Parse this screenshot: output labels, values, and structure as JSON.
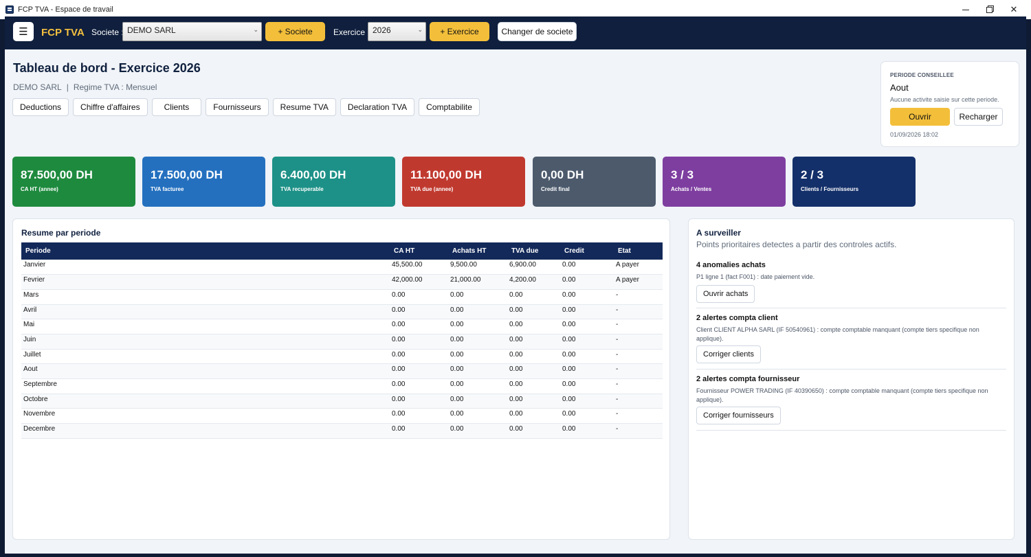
{
  "window": {
    "title": "FCP TVA - Espace de travail"
  },
  "navbar": {
    "menu_icon": "☰",
    "brand": "FCP TVA",
    "societe_label": "Societe :",
    "societe_value": "DEMO SARL",
    "add_societe": "+ Societe",
    "exercice_label": "Exercice :",
    "exercice_value": "2026",
    "add_exercice": "+ Exercice",
    "change_societe": "Changer de societe"
  },
  "header": {
    "title": "Tableau de bord - Exercice 2026",
    "company": "DEMO SARL",
    "separator": "|",
    "regime": "Regime TVA : Mensuel"
  },
  "tabs": [
    "Deductions",
    "Chiffre d'affaires",
    "Clients",
    "Fournisseurs",
    "Resume TVA",
    "Declaration TVA",
    "Comptabilite"
  ],
  "period_card": {
    "label": "PERIODE CONSEILLEE",
    "month": "Aout",
    "note": "Aucune activite saisie sur cette periode.",
    "open_btn": "Ouvrir",
    "reload_btn": "Recharger",
    "timestamp": "01/09/2026 18:02"
  },
  "kpis": [
    {
      "value": "87.500,00 DH",
      "caption": "CA HT (annee)",
      "color": "#1e8a3e"
    },
    {
      "value": "17.500,00 DH",
      "caption": "TVA facturee",
      "color": "#2470bf"
    },
    {
      "value": "6.400,00 DH",
      "caption": "TVA recuperable",
      "color": "#1d9187"
    },
    {
      "value": "11.100,00 DH",
      "caption": "TVA due (annee)",
      "color": "#c0392f"
    },
    {
      "value": "0,00 DH",
      "caption": "Credit final",
      "color": "#4c5a6c"
    },
    {
      "value": "3 / 3",
      "caption": "Achats / Ventes",
      "color": "#7e3ea0"
    },
    {
      "value": "2 / 3",
      "caption": "Clients / Fournisseurs",
      "color": "#14306a"
    }
  ],
  "summary": {
    "title": "Resume par periode",
    "columns": [
      "Periode",
      "CA HT",
      "Achats HT",
      "TVA due",
      "Credit",
      "Etat"
    ],
    "rows": [
      [
        "Janvier",
        "45,500.00",
        "9,500.00",
        "6,900.00",
        "0.00",
        "A payer"
      ],
      [
        "Fevrier",
        "42,000.00",
        "21,000.00",
        "4,200.00",
        "0.00",
        "A payer"
      ],
      [
        "Mars",
        "0.00",
        "0.00",
        "0.00",
        "0.00",
        "-"
      ],
      [
        "Avril",
        "0.00",
        "0.00",
        "0.00",
        "0.00",
        "-"
      ],
      [
        "Mai",
        "0.00",
        "0.00",
        "0.00",
        "0.00",
        "-"
      ],
      [
        "Juin",
        "0.00",
        "0.00",
        "0.00",
        "0.00",
        "-"
      ],
      [
        "Juillet",
        "0.00",
        "0.00",
        "0.00",
        "0.00",
        "-"
      ],
      [
        "Aout",
        "0.00",
        "0.00",
        "0.00",
        "0.00",
        "-"
      ],
      [
        "Septembre",
        "0.00",
        "0.00",
        "0.00",
        "0.00",
        "-"
      ],
      [
        "Octobre",
        "0.00",
        "0.00",
        "0.00",
        "0.00",
        "-"
      ],
      [
        "Novembre",
        "0.00",
        "0.00",
        "0.00",
        "0.00",
        "-"
      ],
      [
        "Decembre",
        "0.00",
        "0.00",
        "0.00",
        "0.00",
        "-"
      ]
    ]
  },
  "watch": {
    "title": "A surveiller",
    "subtitle": "Points prioritaires detectes a partir des controles actifs.",
    "alerts": [
      {
        "title": "4 anomalies achats",
        "detail": "P1 ligne 1 (fact F001) : date paiement vide.",
        "button": "Ouvrir achats"
      },
      {
        "title": "2 alertes compta client",
        "detail": "Client CLIENT ALPHA SARL (IF 50540961) : compte comptable manquant (compte tiers specifique non applique).",
        "button": "Corriger clients"
      },
      {
        "title": "2 alertes compta fournisseur",
        "detail": "Fournisseur POWER TRADING (IF 40390650) : compte comptable manquant (compte tiers specifique non applique).",
        "button": "Corriger fournisseurs"
      }
    ]
  }
}
